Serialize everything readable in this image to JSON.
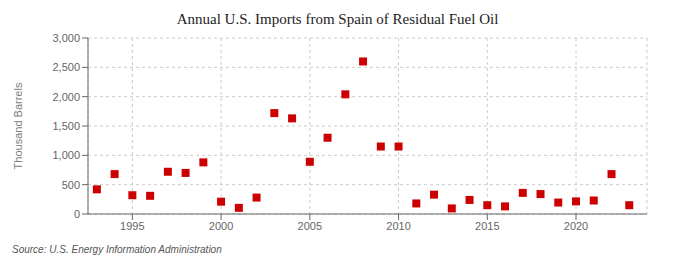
{
  "chart_data": {
    "type": "scatter",
    "title": "Annual U.S. Imports from Spain of Residual Fuel Oil",
    "y_label": "Thousand Barrels",
    "annotations": [
      "Source: U.S. Energy Information Administration"
    ],
    "x": [
      1993,
      1994,
      1995,
      1996,
      1997,
      1998,
      1999,
      2000,
      2001,
      2002,
      2003,
      2004,
      2005,
      2006,
      2007,
      2008,
      2009,
      2010,
      2011,
      2012,
      2013,
      2014,
      2015,
      2016,
      2017,
      2018,
      2019,
      2020,
      2021,
      2022,
      2023
    ],
    "values": [
      420,
      680,
      320,
      310,
      720,
      700,
      880,
      210,
      105,
      280,
      1720,
      1630,
      890,
      1300,
      2040,
      2600,
      1150,
      1150,
      180,
      330,
      95,
      240,
      150,
      130,
      360,
      340,
      195,
      215,
      230,
      680,
      150
    ],
    "color": "#cc0000",
    "marker": "square",
    "xlim": [
      1992.5,
      2024
    ],
    "ylim": [
      0,
      3000
    ],
    "xticks": [
      1995,
      2000,
      2005,
      2010,
      2015,
      2020
    ],
    "yticks": [
      0,
      500,
      {
        "value": 1000,
        "label": "1,000"
      },
      {
        "value": 1500,
        "label": "1,500"
      },
      {
        "value": 2000,
        "label": "2,000"
      },
      {
        "value": 2500,
        "label": "2,500"
      },
      {
        "value": 3000,
        "label": "3,000"
      }
    ],
    "grid": true
  }
}
